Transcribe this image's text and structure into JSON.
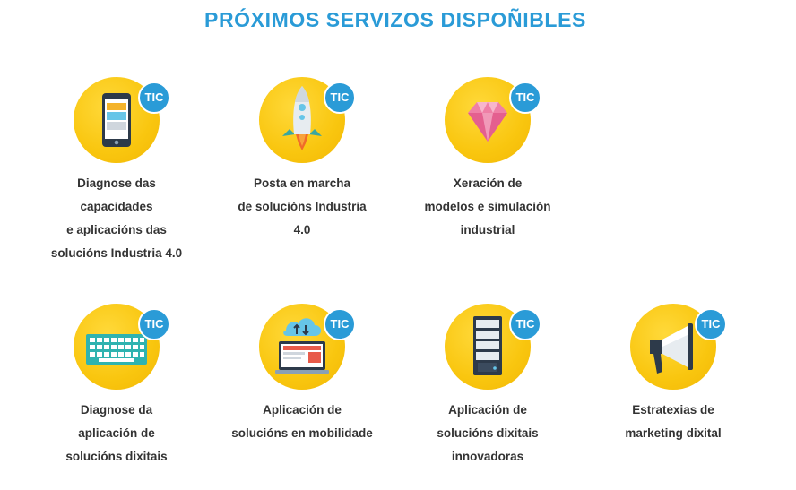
{
  "title": "PRÓXIMOS SERVIZOS DISPOÑIBLES",
  "badge_label": "TIC",
  "colors": {
    "title": "#2a9bd7",
    "circle": "#f9c60f",
    "badge": "#2a9bd7",
    "label_text": "#333333"
  },
  "services": [
    {
      "icon": "smartphone-icon",
      "lines": [
        "Diagnose das",
        "capacidades",
        "e aplicacións das",
        "solucións Industria 4.0"
      ]
    },
    {
      "icon": "rocket-icon",
      "lines": [
        "Posta en marcha",
        "de solucións Industria",
        "4.0"
      ]
    },
    {
      "icon": "diamond-icon",
      "lines": [
        "Xeración de",
        "modelos e simulación",
        "industrial"
      ]
    },
    {
      "icon": "keyboard-icon",
      "lines": [
        "Diagnose da",
        "aplicación de",
        "solucións dixitais"
      ]
    },
    {
      "icon": "cloud-laptop-icon",
      "lines": [
        "Aplicación de",
        "solucións en mobilidade"
      ]
    },
    {
      "icon": "server-icon",
      "lines": [
        "Aplicación de",
        "solucións dixitais",
        "innovadoras"
      ]
    },
    {
      "icon": "megaphone-icon",
      "lines": [
        "Estratexias de",
        "marketing dixital"
      ]
    }
  ]
}
